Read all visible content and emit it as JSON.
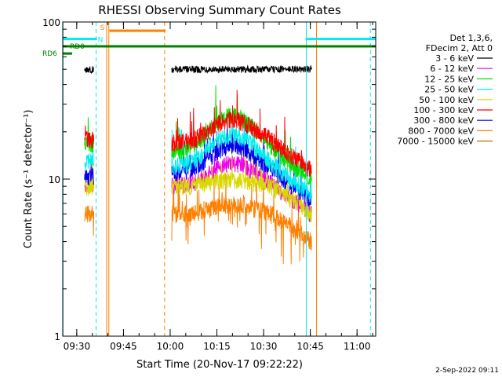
{
  "chart_data": {
    "type": "line",
    "title": "RHESSI Observing Summary Count Rates",
    "xlabel": "Start Time (20-Nov-17 09:22:22)",
    "ylabel": "Count Rate (s⁻¹ detector⁻¹)",
    "y_scale": "log",
    "ylim": [
      1,
      100
    ],
    "xlim_minutes": [
      565.5,
      666
    ],
    "x_ticks": [
      {
        "label": "09:30",
        "minute": 570
      },
      {
        "label": "09:45",
        "minute": 585
      },
      {
        "label": "10:00",
        "minute": 600
      },
      {
        "label": "10:15",
        "minute": 615
      },
      {
        "label": "10:30",
        "minute": 630
      },
      {
        "label": "10:45",
        "minute": 645
      },
      {
        "label": "11:00",
        "minute": 660
      }
    ],
    "y_ticks": [
      {
        "label": "1",
        "value": 1
      },
      {
        "label": "10",
        "value": 10
      },
      {
        "label": "100",
        "value": 100
      }
    ],
    "legend_header": [
      "Det 1,3,6,",
      "FDecim 2, Att 0"
    ],
    "legend_placement": "right",
    "series": [
      {
        "name": "3 - 6 keV",
        "color": "#000000",
        "seg1": 50,
        "seg2": 50,
        "peak": 0
      },
      {
        "name": "6 - 12 keV",
        "color": "#ee00ee",
        "seg1": 9,
        "seg2": 9,
        "peak": 1.4
      },
      {
        "name": "12 - 25 keV",
        "color": "#00e000",
        "seg1": 17,
        "seg2": 15,
        "peak": 1.7
      },
      {
        "name": "25 - 50 keV",
        "color": "#00eeee",
        "seg1": 13,
        "seg2": 12,
        "peak": 1.6
      },
      {
        "name": "50 - 100 keV",
        "color": "#d8d800",
        "seg1": 9,
        "seg2": 9,
        "peak": 1.1
      },
      {
        "name": "100 - 300 keV",
        "color": "#ff0000",
        "seg1": 18,
        "seg2": 17,
        "peak": 1.4
      },
      {
        "name": "300 - 800 keV",
        "color": "#0000ee",
        "seg1": 10.5,
        "seg2": 11,
        "peak": 1.5
      },
      {
        "name": "800 - 7000 keV",
        "color": "#ff8000",
        "seg1": 6,
        "seg2": 6,
        "peak": 1.15
      },
      {
        "name": "7000 - 15000 keV",
        "color": "#b07000",
        "seg1": 0,
        "seg2": 0,
        "peak": 0
      }
    ],
    "data_segments": [
      {
        "start": 572.5,
        "end": 575.5
      },
      {
        "start": 600.5,
        "end": 645.5
      }
    ],
    "peak_minute": 620,
    "flag_bars": [
      {
        "label": "N",
        "color": "#00eeee",
        "level": 78,
        "ranges": [
          [
            565.5,
            576.5
          ],
          [
            643.5,
            666
          ]
        ]
      },
      {
        "label": "S",
        "color": "#ff8000",
        "level": 88,
        "ranges": [
          [
            580.5,
            598.5
          ]
        ]
      },
      {
        "label": "RD0",
        "color": "#008000",
        "level": 70,
        "ranges": [
          [
            565.5,
            666
          ]
        ]
      },
      {
        "label": "RD6",
        "color": "#008000",
        "level": 63,
        "ranges": [
          [
            565.5,
            568.5
          ]
        ]
      }
    ],
    "vertical_markers": [
      {
        "minute": 565.6,
        "color": "#00eeee",
        "style": "solid"
      },
      {
        "minute": 576.2,
        "color": "#00eeee",
        "style": "dashed"
      },
      {
        "minute": 579.6,
        "color": "#ff8000",
        "style": "solid"
      },
      {
        "minute": 580.3,
        "color": "#ff8000",
        "style": "solid"
      },
      {
        "minute": 598.2,
        "color": "#ff8000",
        "style": "dashed"
      },
      {
        "minute": 643.7,
        "color": "#00eeee",
        "style": "solid"
      },
      {
        "minute": 664.3,
        "color": "#00eeee",
        "style": "dashed"
      },
      {
        "minute": 647.0,
        "color": "#ff8000",
        "style": "solid"
      }
    ]
  },
  "footer": {
    "date": "2-Sep-2022 09:11"
  }
}
